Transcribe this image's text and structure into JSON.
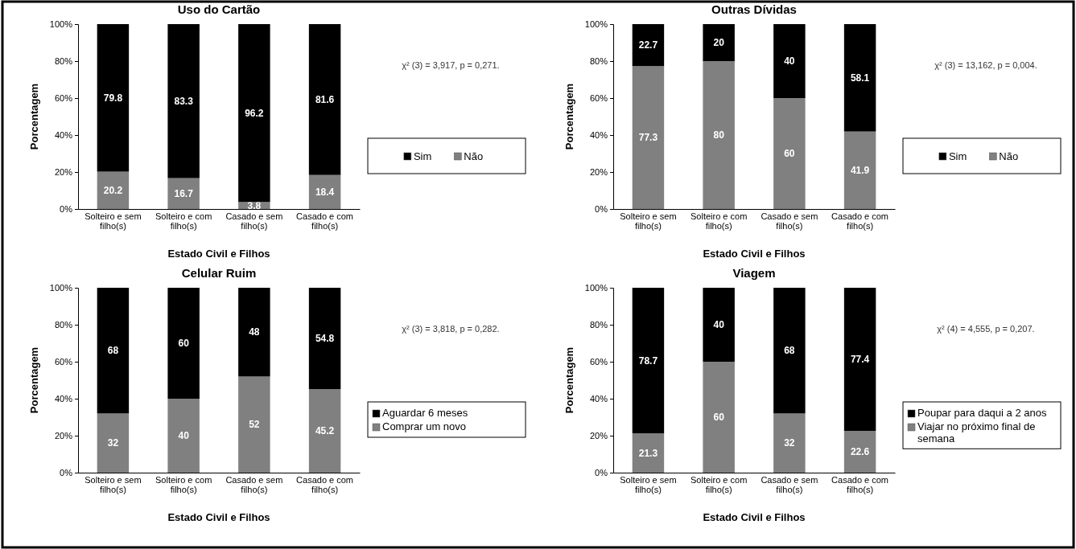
{
  "chart_data": [
    {
      "type": "bar",
      "stacked": true,
      "title": "Uso do Cartão",
      "xlabel": "Estado Civil e Filhos",
      "ylabel": "Porcentagem",
      "categories": [
        "Solteiro e sem filho(s)",
        "Solteiro e com filho(s)",
        "Casado e sem filho(s)",
        "Casado e com filho(s)"
      ],
      "series": [
        {
          "name": "Não",
          "color": "#808080",
          "values": [
            20.2,
            16.7,
            3.8,
            18.4
          ]
        },
        {
          "name": "Sim",
          "color": "#000000",
          "values": [
            79.8,
            83.3,
            96.2,
            81.6
          ]
        }
      ],
      "ylim": [
        0,
        100
      ],
      "yticks": [
        {
          "value": 0,
          "label": "0%"
        },
        {
          "value": 20,
          "label": "20%"
        },
        {
          "value": 40,
          "label": "40%"
        },
        {
          "value": 60,
          "label": "60%"
        },
        {
          "value": 80,
          "label": "80%"
        },
        {
          "value": 100,
          "label": "100%"
        }
      ],
      "data_labels": true,
      "legend": "right",
      "annotations": [
        "χ² (3) = 3,917, p = 0,271."
      ]
    },
    {
      "type": "bar",
      "stacked": true,
      "title": "Outras Dívidas",
      "xlabel": "Estado Civil e Filhos",
      "ylabel": "Porcentagem",
      "categories": [
        "Solteiro e sem filho(s)",
        "Solteiro e com filho(s)",
        "Casado e sem filho(s)",
        "Casado e com filho(s)"
      ],
      "series": [
        {
          "name": "Não",
          "color": "#808080",
          "values": [
            77.3,
            80,
            60,
            41.9
          ]
        },
        {
          "name": "Sim",
          "color": "#000000",
          "values": [
            22.7,
            20,
            40,
            58.1
          ]
        }
      ],
      "ylim": [
        0,
        100
      ],
      "yticks": [
        {
          "value": 0,
          "label": "0%"
        },
        {
          "value": 20,
          "label": "20%"
        },
        {
          "value": 40,
          "label": "40%"
        },
        {
          "value": 60,
          "label": "60%"
        },
        {
          "value": 80,
          "label": "80%"
        },
        {
          "value": 100,
          "label": "100%"
        }
      ],
      "data_labels": true,
      "legend": "right",
      "annotations": [
        "χ² (3) = 13,162, p = 0,004."
      ]
    },
    {
      "type": "bar",
      "stacked": true,
      "title": "Celular Ruim",
      "xlabel": "Estado Civil e Filhos",
      "ylabel": "Porcentagem",
      "categories": [
        "Solteiro e sem filho(s)",
        "Solteiro e com filho(s)",
        "Casado e sem filho(s)",
        "Casado e com filho(s)"
      ],
      "series": [
        {
          "name": "Comprar um novo",
          "color": "#808080",
          "values": [
            32,
            40,
            52,
            45.2
          ]
        },
        {
          "name": "Aguardar 6 meses",
          "color": "#000000",
          "values": [
            68,
            60,
            48,
            54.8
          ]
        }
      ],
      "ylim": [
        0,
        100
      ],
      "yticks": [
        {
          "value": 0,
          "label": "0%"
        },
        {
          "value": 20,
          "label": "20%"
        },
        {
          "value": 40,
          "label": "40%"
        },
        {
          "value": 60,
          "label": "60%"
        },
        {
          "value": 80,
          "label": "80%"
        },
        {
          "value": 100,
          "label": "100%"
        }
      ],
      "data_labels": true,
      "legend": "right",
      "annotations": [
        "χ² (3) = 3,818, p = 0,282."
      ]
    },
    {
      "type": "bar",
      "stacked": true,
      "title": "Viagem",
      "xlabel": "Estado Civil e Filhos",
      "ylabel": "Porcentagem",
      "categories": [
        "Solteiro e sem filho(s)",
        "Solteiro e com filho(s)",
        "Casado e sem filho(s)",
        "Casado e com filho(s)"
      ],
      "series": [
        {
          "name": "Viajar no próximo final de semana",
          "color": "#808080",
          "values": [
            21.3,
            60,
            32,
            22.6
          ]
        },
        {
          "name": "Poupar para daqui a 2 anos",
          "color": "#000000",
          "values": [
            78.7,
            40,
            68,
            77.4
          ]
        }
      ],
      "ylim": [
        0,
        100
      ],
      "yticks": [
        {
          "value": 0,
          "label": "0%"
        },
        {
          "value": 20,
          "label": "20%"
        },
        {
          "value": 40,
          "label": "40%"
        },
        {
          "value": 60,
          "label": "60%"
        },
        {
          "value": 80,
          "label": "80%"
        },
        {
          "value": 100,
          "label": "100%"
        }
      ],
      "data_labels": true,
      "legend": "right",
      "annotations": [
        "χ² (4) = 4,555, p = 0,207."
      ]
    }
  ]
}
